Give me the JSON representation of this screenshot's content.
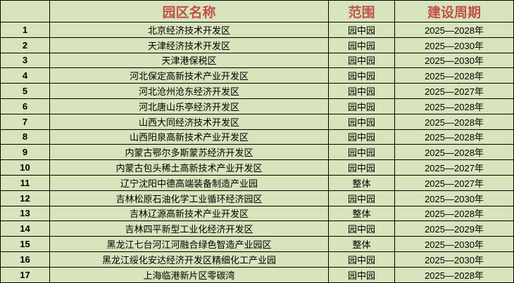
{
  "header": {
    "index": "",
    "name": "园区名称",
    "scope": "范围",
    "period": "建设周期"
  },
  "rows": [
    {
      "index": "1",
      "name": "北京经济技术开发区",
      "scope": "园中园",
      "period": "2025—2028年"
    },
    {
      "index": "2",
      "name": "天津经济技术开发区",
      "scope": "园中园",
      "period": "2025—2030年"
    },
    {
      "index": "3",
      "name": "天津港保税区",
      "scope": "园中园",
      "period": "2025—2030年"
    },
    {
      "index": "4",
      "name": "河北保定高新技术产业开发区",
      "scope": "园中园",
      "period": "2025—2028年"
    },
    {
      "index": "5",
      "name": "河北沧州沧东经济开发区",
      "scope": "园中园",
      "period": "2025—2027年"
    },
    {
      "index": "6",
      "name": "河北唐山乐亭经济开发区",
      "scope": "园中园",
      "period": "2025—2028年"
    },
    {
      "index": "7",
      "name": "山西大同经济技术开发区",
      "scope": "园中园",
      "period": "2025—2028年"
    },
    {
      "index": "8",
      "name": "山西阳泉高新技术产业开发区",
      "scope": "园中园",
      "period": "2025—2028年"
    },
    {
      "index": "9",
      "name": "内蒙古鄂尔多斯蒙苏经济开发区",
      "scope": "园中园",
      "period": "2025—2028年"
    },
    {
      "index": "10",
      "name": "内蒙古包头稀土高新技术产业开发区",
      "scope": "园中园",
      "period": "2025—2027年"
    },
    {
      "index": "11",
      "name": "辽宁沈阳中德高端装备制造产业园",
      "scope": "整体",
      "period": "2025—2027年"
    },
    {
      "index": "12",
      "name": "吉林松原石油化学工业循环经济园区",
      "scope": "园中园",
      "period": "2025—2030年"
    },
    {
      "index": "13",
      "name": "吉林辽源高新技术产业开发区",
      "scope": "整体",
      "period": "2025—2028年"
    },
    {
      "index": "14",
      "name": "吉林四平新型工业化经济开发区",
      "scope": "园中园",
      "period": "2025—2029年"
    },
    {
      "index": "15",
      "name": "黑龙江七台河江河融合绿色智造产业园区",
      "scope": "整体",
      "period": "2025—2030年"
    },
    {
      "index": "16",
      "name": "黑龙江绥化安达经济开发区精细化工产业园",
      "scope": "园中园",
      "period": "2025—2030年"
    },
    {
      "index": "17",
      "name": "上海临港新片区零碳湾",
      "scope": "园中园",
      "period": "2025—2028年"
    }
  ]
}
